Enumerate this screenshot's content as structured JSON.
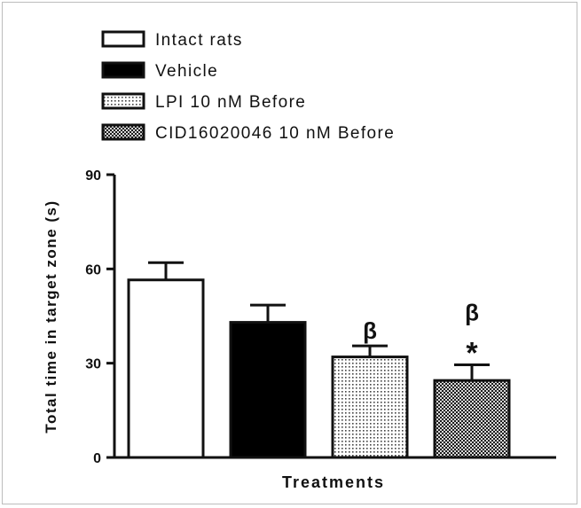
{
  "chart_data": {
    "type": "bar",
    "xlabel": "Treatments",
    "ylabel": "Total time in target zone (s)",
    "ylim": [
      0,
      90
    ],
    "yticks": [
      0,
      30,
      60,
      90
    ],
    "grid": false,
    "legend_position": "top-left",
    "series": [
      {
        "name": "Intact rats",
        "value": 56.5,
        "error": 5.5,
        "pattern": "white",
        "annotations": []
      },
      {
        "name": "Vehicle",
        "value": 43,
        "error": 5.5,
        "pattern": "black",
        "annotations": []
      },
      {
        "name": "LPI 10 nM Before",
        "value": 32,
        "error": 3.5,
        "pattern": "dots",
        "annotations": [
          "β"
        ]
      },
      {
        "name": "CID16020046 10 nM Before",
        "value": 24.5,
        "error": 5,
        "pattern": "checker",
        "annotations": [
          "β",
          "*"
        ]
      }
    ]
  },
  "colors": {
    "ink": "#111111",
    "background": "#ffffff",
    "frame": "#bdbdbd"
  }
}
